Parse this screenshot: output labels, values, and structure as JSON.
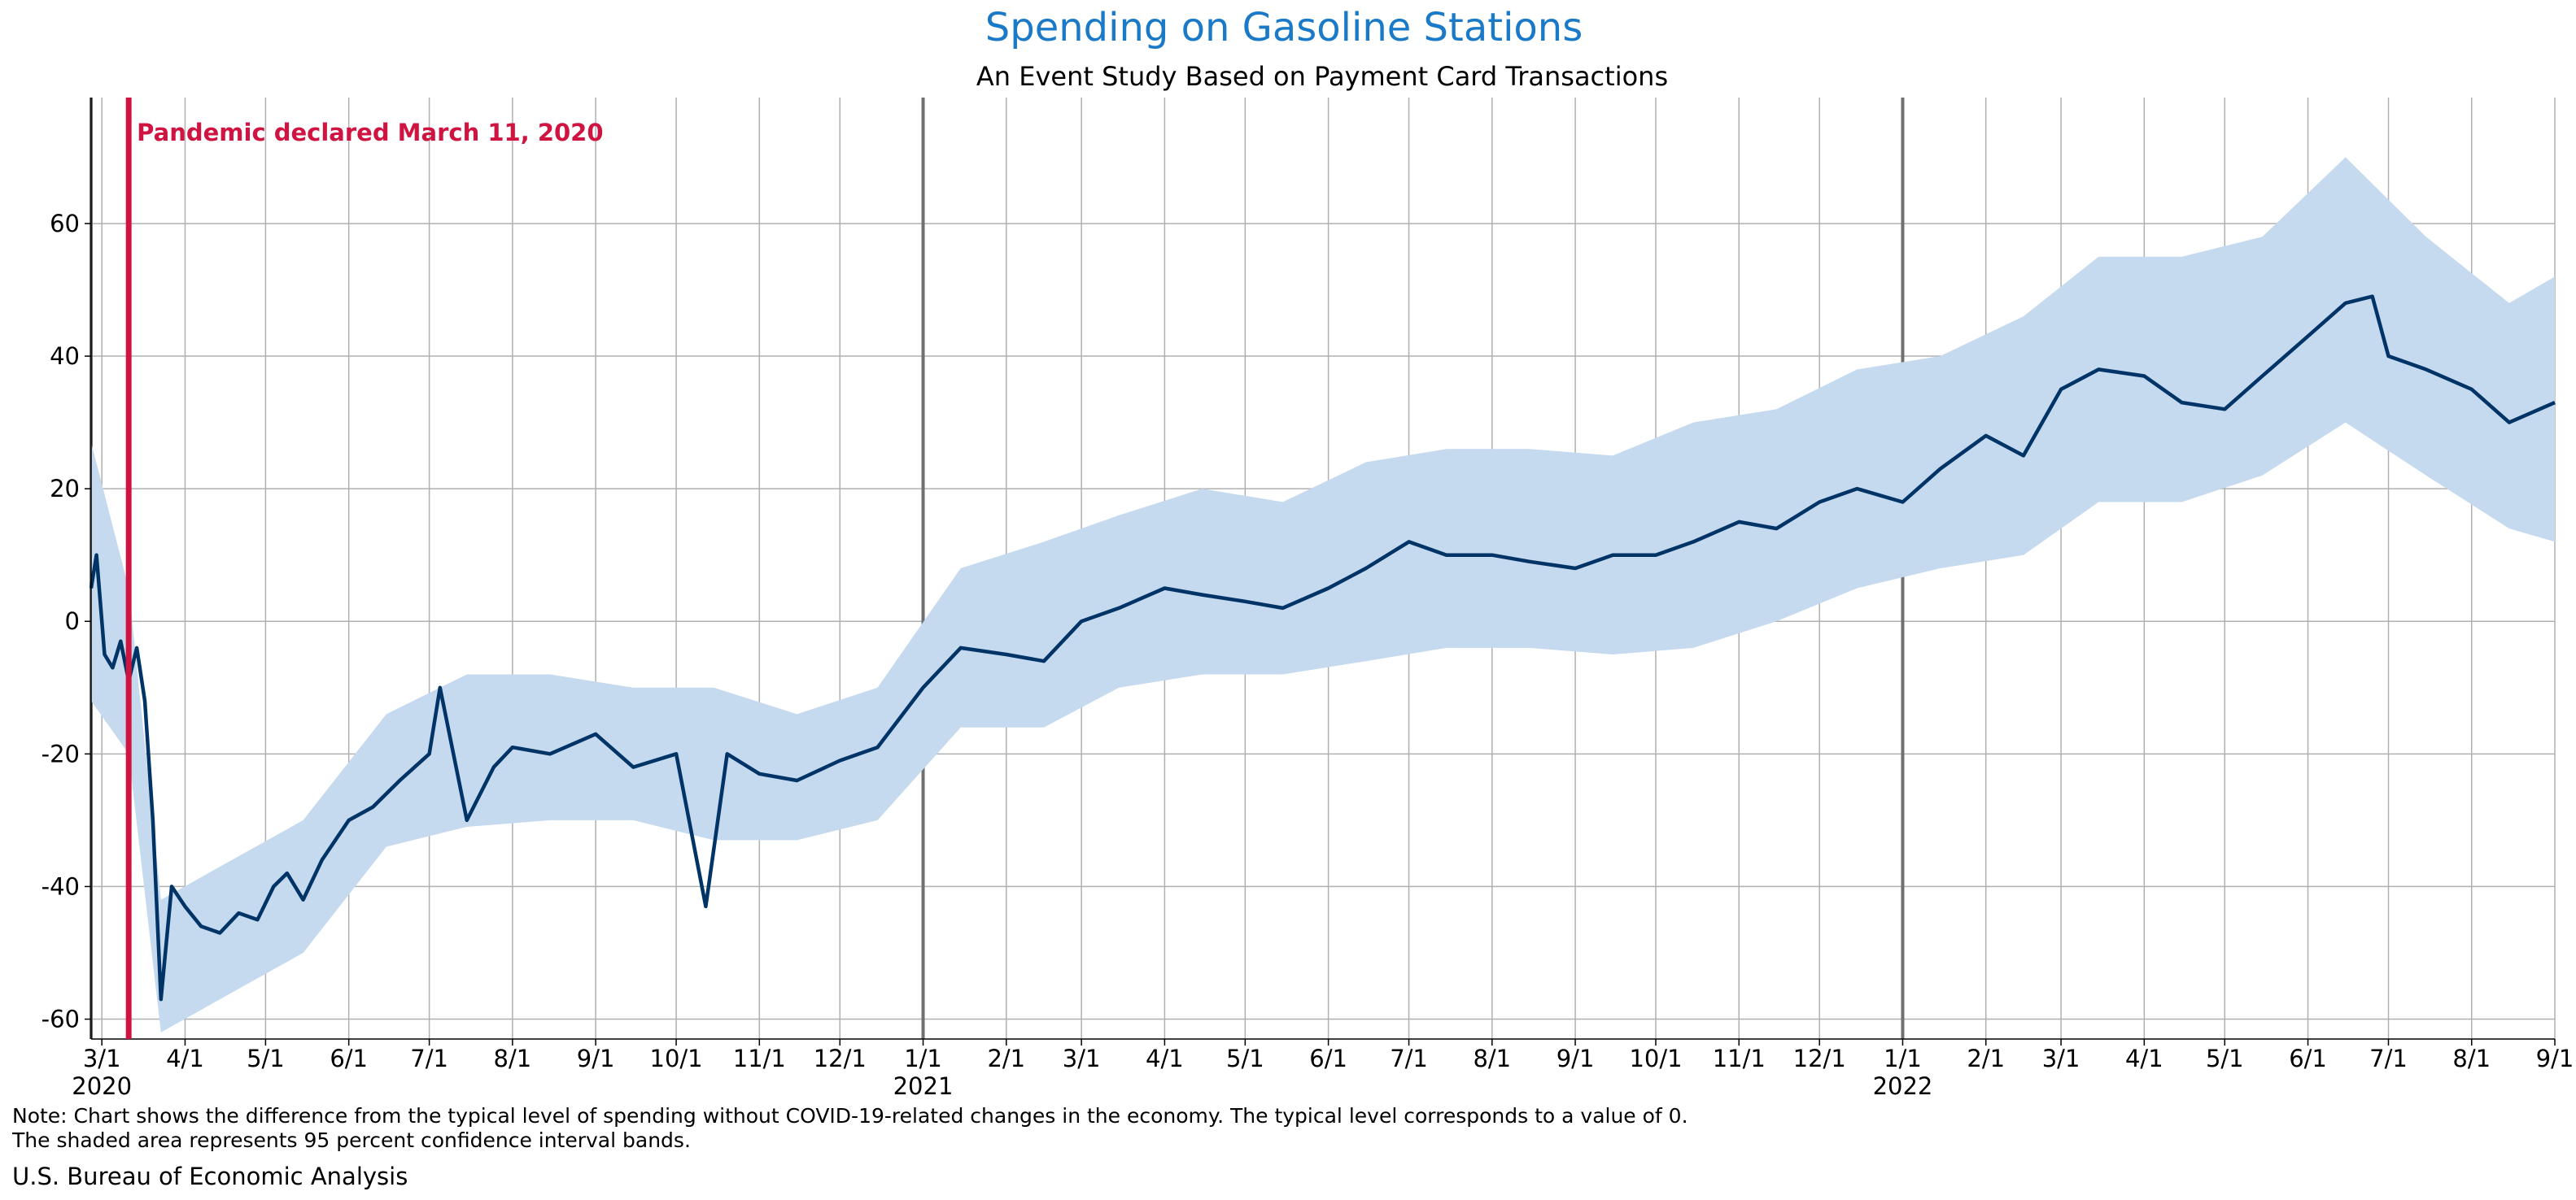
{
  "chart_data": {
    "type": "line",
    "title": "Spending on Gasoline Stations",
    "subtitle": "An Event Study Based on Payment Card Transactions",
    "xlabel": "",
    "ylabel": "",
    "ylim": [
      -63,
      79
    ],
    "y_ticks": [
      -60,
      -40,
      -20,
      0,
      20,
      40,
      60
    ],
    "x_range": [
      "2020-02-26",
      "2022-09-01"
    ],
    "x_ticks": [
      {
        "date": "2020-03-01",
        "label": "3/1",
        "year": "2020"
      },
      {
        "date": "2020-04-01",
        "label": "4/1"
      },
      {
        "date": "2020-05-01",
        "label": "5/1"
      },
      {
        "date": "2020-06-01",
        "label": "6/1"
      },
      {
        "date": "2020-07-01",
        "label": "7/1"
      },
      {
        "date": "2020-08-01",
        "label": "8/1"
      },
      {
        "date": "2020-09-01",
        "label": "9/1"
      },
      {
        "date": "2020-10-01",
        "label": "10/1"
      },
      {
        "date": "2020-11-01",
        "label": "11/1"
      },
      {
        "date": "2020-12-01",
        "label": "12/1"
      },
      {
        "date": "2021-01-01",
        "label": "1/1",
        "year": "2021"
      },
      {
        "date": "2021-02-01",
        "label": "2/1"
      },
      {
        "date": "2021-03-01",
        "label": "3/1"
      },
      {
        "date": "2021-04-01",
        "label": "4/1"
      },
      {
        "date": "2021-05-01",
        "label": "5/1"
      },
      {
        "date": "2021-06-01",
        "label": "6/1"
      },
      {
        "date": "2021-07-01",
        "label": "7/1"
      },
      {
        "date": "2021-08-01",
        "label": "8/1"
      },
      {
        "date": "2021-09-01",
        "label": "9/1"
      },
      {
        "date": "2021-10-01",
        "label": "10/1"
      },
      {
        "date": "2021-11-01",
        "label": "11/1"
      },
      {
        "date": "2021-12-01",
        "label": "12/1"
      },
      {
        "date": "2022-01-01",
        "label": "1/1",
        "year": "2022"
      },
      {
        "date": "2022-02-01",
        "label": "2/1"
      },
      {
        "date": "2022-03-01",
        "label": "3/1"
      },
      {
        "date": "2022-04-01",
        "label": "4/1"
      },
      {
        "date": "2022-05-01",
        "label": "5/1"
      },
      {
        "date": "2022-06-01",
        "label": "6/1"
      },
      {
        "date": "2022-07-01",
        "label": "7/1"
      },
      {
        "date": "2022-08-01",
        "label": "8/1"
      },
      {
        "date": "2022-09-01",
        "label": "9/1"
      }
    ],
    "year_boundaries": [
      "2020-02-26",
      "2021-01-01",
      "2022-01-01"
    ],
    "grid": true,
    "annotation": {
      "date": "2020-03-11",
      "label": "Pandemic declared March 11, 2020",
      "color": "#d01442"
    },
    "series": [
      {
        "style": "line",
        "color": "#003366",
        "points": [
          [
            "2020-02-26",
            5
          ],
          [
            "2020-02-28",
            10
          ],
          [
            "2020-03-02",
            -5
          ],
          [
            "2020-03-05",
            -7
          ],
          [
            "2020-03-08",
            -3
          ],
          [
            "2020-03-11",
            -9
          ],
          [
            "2020-03-14",
            -4
          ],
          [
            "2020-03-17",
            -12
          ],
          [
            "2020-03-20",
            -30
          ],
          [
            "2020-03-23",
            -57
          ],
          [
            "2020-03-27",
            -40
          ],
          [
            "2020-04-01",
            -43
          ],
          [
            "2020-04-07",
            -46
          ],
          [
            "2020-04-14",
            -47
          ],
          [
            "2020-04-21",
            -44
          ],
          [
            "2020-04-28",
            -45
          ],
          [
            "2020-05-04",
            -40
          ],
          [
            "2020-05-09",
            -38
          ],
          [
            "2020-05-15",
            -42
          ],
          [
            "2020-05-22",
            -36
          ],
          [
            "2020-06-01",
            -30
          ],
          [
            "2020-06-10",
            -28
          ],
          [
            "2020-06-20",
            -24
          ],
          [
            "2020-07-01",
            -20
          ],
          [
            "2020-07-05",
            -10
          ],
          [
            "2020-07-15",
            -30
          ],
          [
            "2020-07-25",
            -22
          ],
          [
            "2020-08-01",
            -19
          ],
          [
            "2020-08-15",
            -20
          ],
          [
            "2020-09-01",
            -17
          ],
          [
            "2020-09-15",
            -22
          ],
          [
            "2020-10-01",
            -20
          ],
          [
            "2020-10-12",
            -43
          ],
          [
            "2020-10-20",
            -20
          ],
          [
            "2020-11-01",
            -23
          ],
          [
            "2020-11-15",
            -24
          ],
          [
            "2020-12-01",
            -21
          ],
          [
            "2020-12-15",
            -19
          ],
          [
            "2021-01-01",
            -10
          ],
          [
            "2021-01-15",
            -4
          ],
          [
            "2021-02-01",
            -5
          ],
          [
            "2021-02-15",
            -6
          ],
          [
            "2021-03-01",
            0
          ],
          [
            "2021-03-15",
            2
          ],
          [
            "2021-04-01",
            5
          ],
          [
            "2021-04-15",
            4
          ],
          [
            "2021-05-01",
            3
          ],
          [
            "2021-05-15",
            2
          ],
          [
            "2021-06-01",
            5
          ],
          [
            "2021-06-15",
            8
          ],
          [
            "2021-07-01",
            12
          ],
          [
            "2021-07-15",
            10
          ],
          [
            "2021-08-01",
            10
          ],
          [
            "2021-08-15",
            9
          ],
          [
            "2021-09-01",
            8
          ],
          [
            "2021-09-15",
            10
          ],
          [
            "2021-10-01",
            10
          ],
          [
            "2021-10-15",
            12
          ],
          [
            "2021-11-01",
            15
          ],
          [
            "2021-11-15",
            14
          ],
          [
            "2021-12-01",
            18
          ],
          [
            "2021-12-15",
            20
          ],
          [
            "2022-01-01",
            18
          ],
          [
            "2022-01-15",
            23
          ],
          [
            "2022-02-01",
            28
          ],
          [
            "2022-02-15",
            25
          ],
          [
            "2022-03-01",
            35
          ],
          [
            "2022-03-15",
            38
          ],
          [
            "2022-04-01",
            37
          ],
          [
            "2022-04-15",
            33
          ],
          [
            "2022-05-01",
            32
          ],
          [
            "2022-05-15",
            37
          ],
          [
            "2022-06-01",
            43
          ],
          [
            "2022-06-15",
            48
          ],
          [
            "2022-06-25",
            49
          ],
          [
            "2022-07-01",
            40
          ],
          [
            "2022-07-15",
            38
          ],
          [
            "2022-08-01",
            35
          ],
          [
            "2022-08-15",
            30
          ],
          [
            "2022-09-01",
            33
          ]
        ]
      },
      {
        "style": "band",
        "color": "#c5d9ef",
        "points": [
          [
            "2020-02-26",
            -12,
            27
          ],
          [
            "2020-03-11",
            -20,
            5
          ],
          [
            "2020-03-23",
            -62,
            -42
          ],
          [
            "2020-04-14",
            -57,
            -37
          ],
          [
            "2020-05-15",
            -50,
            -30
          ],
          [
            "2020-06-15",
            -34,
            -14
          ],
          [
            "2020-07-15",
            -31,
            -8
          ],
          [
            "2020-08-15",
            -30,
            -8
          ],
          [
            "2020-09-15",
            -30,
            -10
          ],
          [
            "2020-10-15",
            -33,
            -10
          ],
          [
            "2020-11-15",
            -33,
            -14
          ],
          [
            "2020-12-15",
            -30,
            -10
          ],
          [
            "2021-01-15",
            -16,
            8
          ],
          [
            "2021-02-15",
            -16,
            12
          ],
          [
            "2021-03-15",
            -10,
            16
          ],
          [
            "2021-04-15",
            -8,
            20
          ],
          [
            "2021-05-15",
            -8,
            18
          ],
          [
            "2021-06-15",
            -6,
            24
          ],
          [
            "2021-07-15",
            -4,
            26
          ],
          [
            "2021-08-15",
            -4,
            26
          ],
          [
            "2021-09-15",
            -5,
            25
          ],
          [
            "2021-10-15",
            -4,
            30
          ],
          [
            "2021-11-15",
            0,
            32
          ],
          [
            "2021-12-15",
            5,
            38
          ],
          [
            "2022-01-15",
            8,
            40
          ],
          [
            "2022-02-15",
            10,
            46
          ],
          [
            "2022-03-15",
            18,
            55
          ],
          [
            "2022-04-15",
            18,
            55
          ],
          [
            "2022-05-15",
            22,
            58
          ],
          [
            "2022-06-15",
            30,
            70
          ],
          [
            "2022-07-15",
            22,
            58
          ],
          [
            "2022-08-15",
            14,
            48
          ],
          [
            "2022-09-01",
            12,
            52
          ]
        ]
      }
    ]
  },
  "footer": {
    "note": "Note: Chart shows the difference from the typical level of spending without COVID-19-related changes in the economy. The typical level corresponds to a value of 0.\nThe shaded area represents 95 percent confidence interval bands.",
    "source": "U.S. Bureau of Economic Analysis"
  }
}
